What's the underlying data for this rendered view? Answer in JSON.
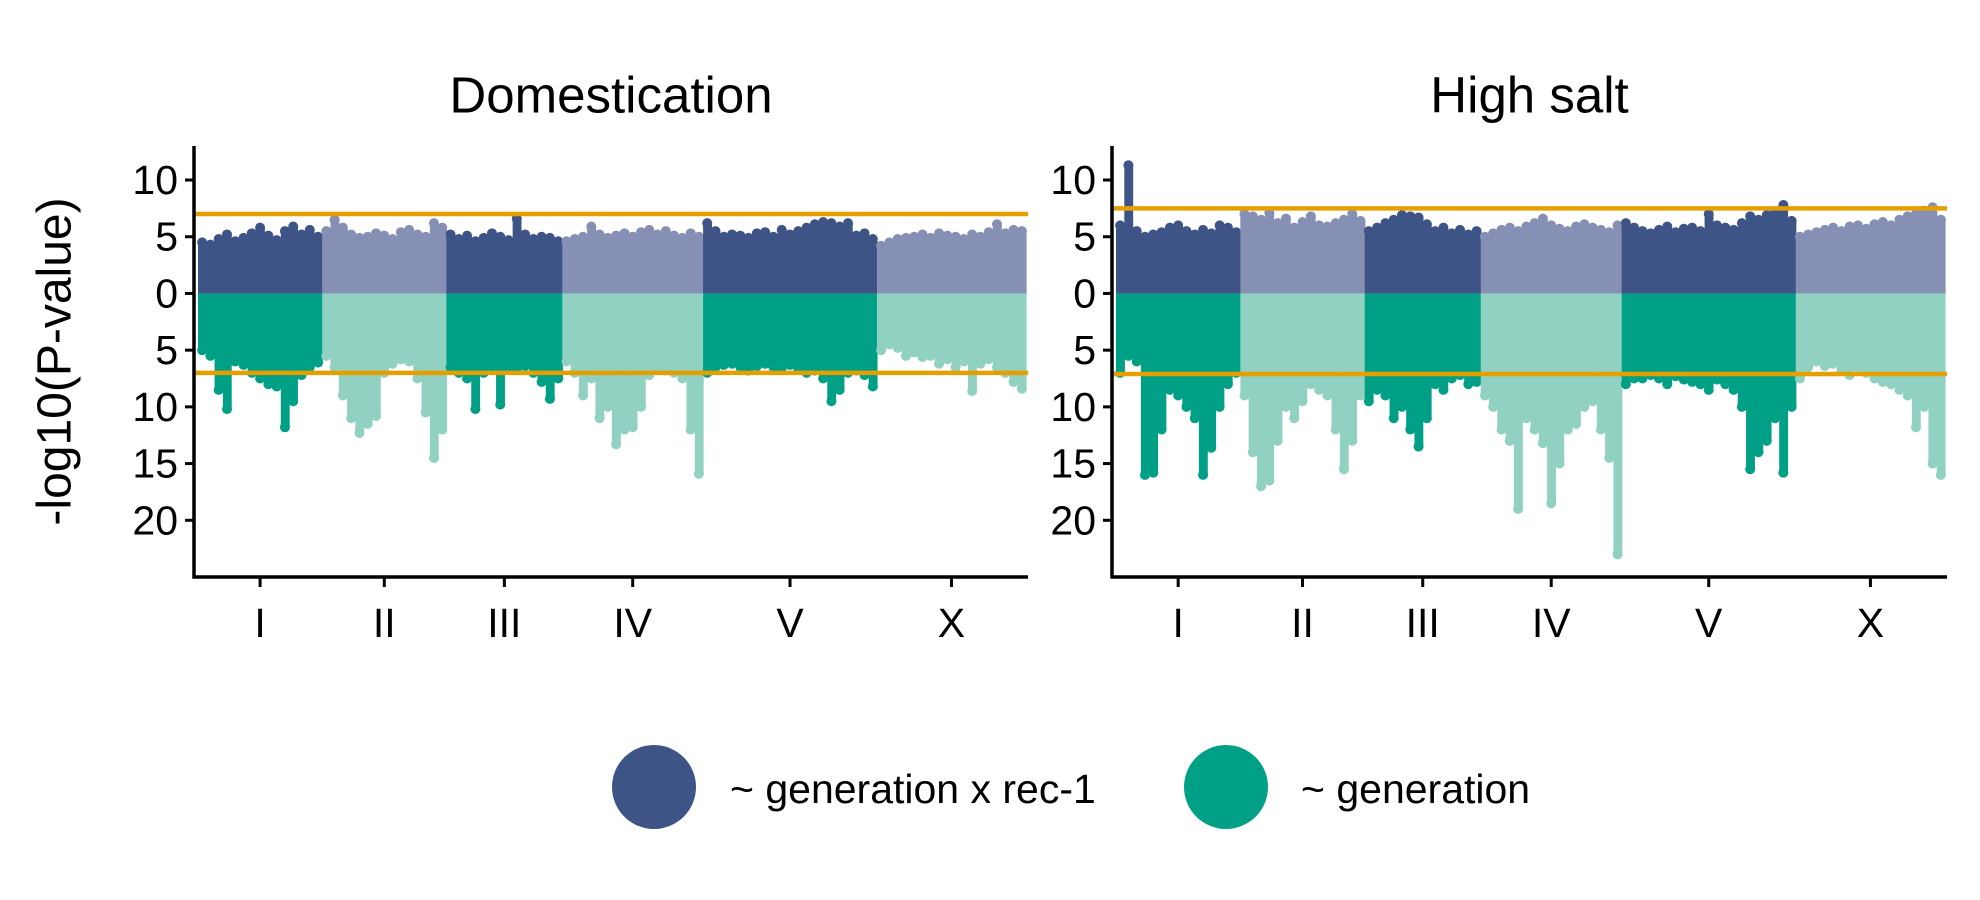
{
  "chart_data": [
    {
      "type": "manhattan",
      "title": "Domestication",
      "ylabel": "-log10(P-value)",
      "categories": [
        "I",
        "II",
        "III",
        "IV",
        "V",
        "X"
      ],
      "ylim": [
        -25,
        13
      ],
      "yticks": [
        10,
        5,
        0,
        {
          "value": -5,
          "label": "5"
        },
        {
          "value": -10,
          "label": "10"
        },
        {
          "value": -15,
          "label": "15"
        },
        {
          "value": -20,
          "label": "20"
        }
      ],
      "thresholds": [
        7,
        -7
      ],
      "threshold_color": "#e69f00",
      "series": [
        {
          "name": "~ generation x rec-1",
          "colors": [
            "#3e5487",
            "#8690b4"
          ],
          "values": [
            [
              4.5,
              4.3,
              4.8,
              5.2,
              4.6,
              4.9,
              5.3,
              5.8,
              5.1,
              4.7,
              5.5,
              5.9,
              5.2,
              5.6,
              5.0
            ],
            [
              5.5,
              6.5,
              5.8,
              5.2,
              4.9,
              5.0,
              5.3,
              5.1,
              4.8,
              5.4,
              5.6,
              5.2,
              5.0,
              6.2,
              5.8
            ],
            [
              5.2,
              4.8,
              5.1,
              4.6,
              4.9,
              5.3,
              5.0,
              4.7,
              6.6,
              5.2,
              4.8,
              5.0,
              4.9,
              4.6
            ],
            [
              4.6,
              4.8,
              5.0,
              5.9,
              5.2,
              4.9,
              5.1,
              5.3,
              5.0,
              5.4,
              5.6,
              5.2,
              5.5,
              5.1,
              4.9,
              5.3,
              5.0
            ],
            [
              6.2,
              5.5,
              5.0,
              5.2,
              5.1,
              4.9,
              5.3,
              5.4,
              5.0,
              5.6,
              5.2,
              5.5,
              5.8,
              6.1,
              6.3,
              6.2,
              5.9,
              6.2,
              5.1,
              5.3,
              4.8
            ],
            [
              4.2,
              4.5,
              4.8,
              4.9,
              5.0,
              5.2,
              4.9,
              5.3,
              5.1,
              5.0,
              4.8,
              5.2,
              5.0,
              5.4,
              6.1,
              5.3,
              5.6,
              5.5
            ]
          ]
        },
        {
          "name": "~ generation",
          "colors": [
            "#00a087",
            "#91d1c2"
          ],
          "values": [
            [
              -5,
              -5.5,
              -8.5,
              -10.2,
              -6,
              -6.3,
              -7,
              -7.5,
              -8,
              -8.2,
              -11.8,
              -9.5,
              -7.2,
              -6.5,
              -6.1
            ],
            [
              -5.5,
              -6.5,
              -9,
              -11,
              -12.3,
              -11.5,
              -10.8,
              -7,
              -6.2,
              -5.8,
              -6,
              -7.5,
              -10.5,
              -14.5,
              -12
            ],
            [
              -6.5,
              -7,
              -7.5,
              -10.2,
              -7,
              -6.5,
              -9.8,
              -6.5,
              -6.6,
              -6.4,
              -7,
              -7.8,
              -9.3,
              -7.5
            ],
            [
              -6,
              -7,
              -9,
              -7.5,
              -11,
              -10,
              -13.3,
              -12,
              -11.8,
              -10,
              -7.2,
              -6.5,
              -6.8,
              -7,
              -7.5,
              -12,
              -15.9
            ],
            [
              -7,
              -6.5,
              -6.3,
              -6.2,
              -6.5,
              -6.8,
              -6.4,
              -6.2,
              -6.5,
              -6.6,
              -6.3,
              -6.7,
              -7,
              -6.8,
              -7.5,
              -9.5,
              -8.5,
              -7,
              -6.8,
              -7.2,
              -8.2
            ],
            [
              -5,
              -4.5,
              -4.8,
              -5.5,
              -5.2,
              -5.6,
              -5.5,
              -6.2,
              -5.8,
              -6.5,
              -6,
              -8.6,
              -6.2,
              -5.8,
              -6.5,
              -7,
              -7.8,
              -8.4
            ]
          ]
        }
      ]
    },
    {
      "type": "manhattan",
      "title": "High salt",
      "categories": [
        "I",
        "II",
        "III",
        "IV",
        "V",
        "X"
      ],
      "ylim": [
        -25,
        13
      ],
      "yticks": [
        10,
        5,
        0,
        {
          "value": -5,
          "label": "5"
        },
        {
          "value": -10,
          "label": "10"
        },
        {
          "value": -15,
          "label": "15"
        },
        {
          "value": -20,
          "label": "20"
        }
      ],
      "thresholds": [
        7.5,
        -7.1
      ],
      "threshold_color": "#e69f00",
      "series": [
        {
          "colors": [
            "#3e5487",
            "#8690b4"
          ],
          "values": [
            [
              6,
              11.3,
              5.5,
              5.0,
              5.2,
              5.4,
              5.8,
              6.0,
              5.5,
              5.2,
              5.6,
              5.3,
              6.0,
              5.8,
              5.4
            ],
            [
              7,
              6.8,
              6.5,
              7.1,
              6.2,
              6.6,
              5.8,
              6.3,
              6.8,
              6.0,
              5.9,
              6.2,
              6.5,
              7.0,
              6.4
            ],
            [
              5.5,
              5.8,
              6.2,
              6.5,
              6.9,
              6.8,
              6.7,
              6.1,
              5.5,
              5.8,
              5.3,
              5.6,
              5.2,
              5.5
            ],
            [
              5,
              5.3,
              5.6,
              5.8,
              5.5,
              5.9,
              6.2,
              6.6,
              6.0,
              5.7,
              5.5,
              5.9,
              6.1,
              5.8,
              5.6,
              5.4,
              6.0
            ],
            [
              6.2,
              5.8,
              5.5,
              5.3,
              5.6,
              5.9,
              5.4,
              5.7,
              5.8,
              5.5,
              7.0,
              6.0,
              5.8,
              5.6,
              6.2,
              6.8,
              6.5,
              6.9,
              7.2,
              7.8,
              6.4
            ],
            [
              5,
              5.2,
              5.4,
              5.6,
              5.8,
              5.5,
              5.9,
              6.0,
              5.7,
              6.1,
              6.3,
              6.0,
              6.5,
              6.8,
              7.0,
              7.3,
              7.6,
              6.5
            ]
          ]
        },
        {
          "colors": [
            "#00a087",
            "#91d1c2"
          ],
          "values": [
            [
              -7,
              -5.5,
              -6,
              -16,
              -15.8,
              -12,
              -8.5,
              -9,
              -10,
              -11,
              -16,
              -13.6,
              -10,
              -8,
              -7
            ],
            [
              -9,
              -14,
              -17,
              -16.5,
              -13,
              -10,
              -11,
              -9.5,
              -8,
              -8.5,
              -9,
              -12,
              -15.5,
              -13,
              -9
            ],
            [
              -9.5,
              -8.5,
              -9,
              -11,
              -10,
              -12,
              -13.5,
              -11,
              -8,
              -8.5,
              -7.5,
              -7.2,
              -8,
              -7.8
            ],
            [
              -9,
              -10,
              -12,
              -13,
              -19,
              -11,
              -12,
              -13.2,
              -18.5,
              -15,
              -12,
              -11.5,
              -10,
              -9.5,
              -12,
              -14.5,
              -23
            ],
            [
              -8,
              -7.5,
              -7.5,
              -7.2,
              -7.5,
              -8,
              -7.3,
              -7.6,
              -7.8,
              -8,
              -8.5,
              -7.6,
              -8,
              -8.5,
              -10,
              -15.5,
              -14,
              -13,
              -11,
              -15.8,
              -10
            ],
            [
              -7.5,
              -6.5,
              -6,
              -6.4,
              -6.2,
              -6.8,
              -7.2,
              -6.5,
              -7,
              -7.5,
              -7.8,
              -8,
              -8.5,
              -9,
              -11.8,
              -10,
              -15,
              -16
            ]
          ]
        }
      ]
    }
  ]
}
